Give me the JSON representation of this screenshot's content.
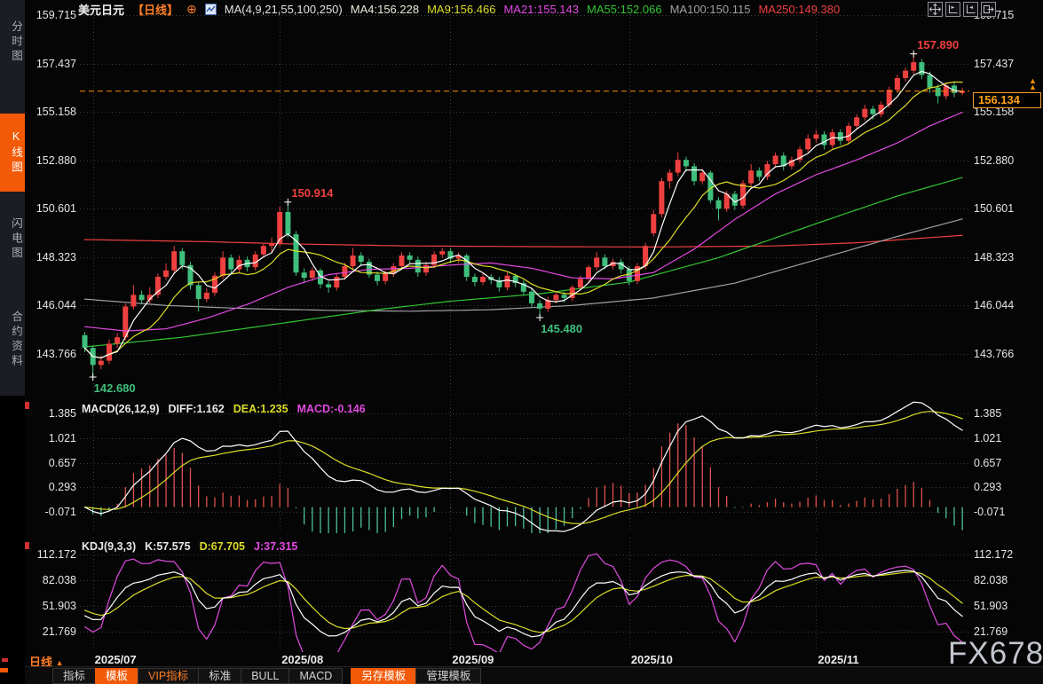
{
  "sidebar": {
    "items": [
      {
        "label": "分时图",
        "active": false
      },
      {
        "label": "K线图",
        "active": true
      },
      {
        "label": "闪电图",
        "active": false
      },
      {
        "label": "合约资料",
        "active": false
      }
    ]
  },
  "header": {
    "symbol": "美元日元",
    "period_tag": "【日线】",
    "add_indicator": "⊕",
    "ma_settings": "MA(4,9,21,55,100,250)",
    "ma_legend": [
      {
        "text": "MA4:156.228",
        "color": "#e8e8d8"
      },
      {
        "text": "MA9:156.466",
        "color": "#dcdc28"
      },
      {
        "text": "MA21:155.143",
        "color": "#e14ae1"
      },
      {
        "text": "MA55:152.066",
        "color": "#32c432"
      },
      {
        "text": "MA100:150.115",
        "color": "#a0a0a8"
      },
      {
        "text": "MA250:149.380",
        "color": "#ef4040"
      }
    ],
    "window_icons": [
      "pan-icon",
      "axis-scale-left-icon",
      "axis-scale-right-icon",
      "popout-icon"
    ]
  },
  "price_scale": {
    "main_ticks": [
      "159.715",
      "157.437",
      "155.158",
      "152.880",
      "150.601",
      "148.323",
      "146.044",
      "143.766"
    ],
    "macd_ticks": [
      "1.385",
      "1.021",
      "0.657",
      "0.293",
      "-0.071"
    ],
    "kdj_ticks": [
      "112.172",
      "82.038",
      "51.903",
      "21.769"
    ]
  },
  "price_line": {
    "badge": "156.134",
    "price": 156.134
  },
  "macd": {
    "title": "MACD(26,12,9)",
    "legend": [
      {
        "text": "DIFF:1.162",
        "color": "#e8e8e8"
      },
      {
        "text": "DEA:1.235",
        "color": "#dcdc28"
      },
      {
        "text": "MACD:-0.146",
        "color": "#e14ae1"
      }
    ]
  },
  "kdj": {
    "title": "KDJ(9,3,3)",
    "legend": [
      {
        "text": "K:57.575",
        "color": "#e8e8e8"
      },
      {
        "text": "D:67.705",
        "color": "#dcdc28"
      },
      {
        "text": "J:37.315",
        "color": "#e14ae1"
      }
    ]
  },
  "xaxis": {
    "period_label": "日线",
    "period_arrow": "▲",
    "months": [
      {
        "label": "2025/07",
        "index": 1
      },
      {
        "label": "2025/08",
        "index": 24
      },
      {
        "label": "2025/09",
        "index": 45
      },
      {
        "label": "2025/10",
        "index": 67
      },
      {
        "label": "2025/11",
        "index": 90
      }
    ]
  },
  "toolbar": {
    "tabs": [
      {
        "label": "指标",
        "style": "plain"
      },
      {
        "label": "模板",
        "style": "active"
      },
      {
        "label": "VIP指标",
        "style": "vip"
      },
      {
        "label": "标准",
        "style": "plain"
      },
      {
        "label": "BULL",
        "style": "plain"
      },
      {
        "label": "MACD",
        "style": "plain"
      },
      {
        "label": "另存模板",
        "style": "active gap"
      },
      {
        "label": "管理模板",
        "style": "plain"
      }
    ]
  },
  "watermark": "FX678",
  "colors": {
    "up": "#ef4040",
    "down": "#3fbf7c",
    "accent": "#f25a08",
    "price_line": "#ff9100",
    "badge_text": "#ffa21a",
    "macd_pos": "#e05050",
    "macd_neg": "#4cbf9f",
    "ma4": "#ffffff",
    "ma9": "#dcdc28",
    "ma21": "#e14ae1",
    "ma55": "#32c432",
    "ma100": "#a0a0a8",
    "ma250": "#ef4040",
    "k": "#ffffff",
    "d": "#dcdc28",
    "j": "#e14ae1",
    "grid": "#3c3c3c",
    "annotation_high": "#ef4040",
    "annotation_low": "#3fbf7c"
  },
  "chart_data": {
    "type": "candlestick",
    "symbol": "USD/JPY",
    "period": "daily",
    "main_ylim": [
      143.766,
      159.715
    ],
    "macd_ylim": [
      -0.071,
      1.385
    ],
    "kdj_ylim": [
      21.769,
      112.172
    ],
    "month_start_indices": [
      1,
      24,
      45,
      67,
      90
    ],
    "annotations": [
      {
        "index": 1,
        "price": 142.68,
        "text": "142.680",
        "kind": "low"
      },
      {
        "index": 25,
        "price": 150.914,
        "text": "150.914",
        "kind": "high"
      },
      {
        "index": 56,
        "price": 145.48,
        "text": "145.480",
        "kind": "low"
      },
      {
        "index": 102,
        "price": 157.89,
        "text": "157.890",
        "kind": "high"
      }
    ],
    "candles": [
      [
        144.65,
        144.8,
        143.85,
        144.05
      ],
      [
        144.05,
        144.15,
        142.68,
        143.25
      ],
      [
        143.25,
        143.7,
        143.05,
        143.45
      ],
      [
        143.45,
        144.45,
        143.3,
        144.25
      ],
      [
        144.25,
        144.75,
        144.05,
        144.55
      ],
      [
        144.55,
        146.15,
        144.4,
        146.0
      ],
      [
        146.0,
        147.0,
        145.85,
        146.55
      ],
      [
        146.55,
        146.75,
        146.1,
        146.3
      ],
      [
        146.3,
        146.9,
        146.15,
        146.55
      ],
      [
        146.55,
        147.55,
        146.4,
        147.4
      ],
      [
        147.4,
        148.03,
        147.25,
        147.7
      ],
      [
        147.7,
        148.85,
        147.55,
        148.6
      ],
      [
        148.6,
        148.75,
        147.75,
        147.95
      ],
      [
        147.95,
        148.1,
        146.8,
        147.0
      ],
      [
        147.0,
        147.15,
        145.76,
        146.35
      ],
      [
        146.35,
        146.85,
        146.2,
        146.65
      ],
      [
        146.65,
        147.6,
        146.5,
        147.45
      ],
      [
        147.45,
        148.6,
        147.3,
        148.3
      ],
      [
        148.3,
        148.45,
        147.55,
        147.75
      ],
      [
        147.75,
        148.4,
        147.6,
        148.2
      ],
      [
        148.2,
        148.35,
        147.65,
        147.85
      ],
      [
        147.85,
        148.6,
        147.7,
        148.45
      ],
      [
        148.45,
        148.95,
        148.3,
        148.85
      ],
      [
        148.85,
        149.25,
        148.55,
        148.95
      ],
      [
        148.95,
        150.7,
        148.8,
        150.45
      ],
      [
        150.45,
        150.914,
        149.25,
        149.4
      ],
      [
        149.4,
        149.55,
        147.45,
        147.6
      ],
      [
        147.6,
        147.8,
        147.1,
        147.35
      ],
      [
        147.35,
        147.85,
        147.2,
        147.7
      ],
      [
        147.7,
        147.8,
        146.85,
        147.05
      ],
      [
        147.05,
        147.2,
        146.65,
        146.9
      ],
      [
        146.9,
        147.55,
        146.75,
        147.4
      ],
      [
        147.4,
        148.05,
        147.25,
        147.9
      ],
      [
        147.9,
        148.75,
        147.75,
        148.4
      ],
      [
        148.4,
        148.55,
        147.9,
        148.1
      ],
      [
        148.1,
        148.25,
        147.35,
        147.5
      ],
      [
        147.5,
        147.65,
        147.0,
        147.2
      ],
      [
        147.2,
        147.7,
        147.05,
        147.55
      ],
      [
        147.55,
        148.05,
        147.4,
        147.9
      ],
      [
        147.9,
        148.55,
        147.75,
        148.4
      ],
      [
        148.4,
        148.55,
        148.0,
        148.2
      ],
      [
        148.2,
        148.35,
        147.4,
        147.6
      ],
      [
        147.6,
        148.1,
        147.45,
        147.95
      ],
      [
        147.95,
        148.6,
        147.8,
        148.45
      ],
      [
        148.45,
        148.75,
        148.3,
        148.6
      ],
      [
        148.6,
        148.75,
        148.05,
        148.25
      ],
      [
        148.25,
        148.55,
        148.05,
        148.4
      ],
      [
        148.4,
        148.5,
        147.2,
        147.4
      ],
      [
        147.4,
        147.55,
        146.95,
        147.15
      ],
      [
        147.15,
        147.55,
        147.0,
        147.4
      ],
      [
        147.4,
        147.52,
        147.05,
        147.25
      ],
      [
        147.25,
        147.4,
        146.7,
        146.9
      ],
      [
        146.9,
        147.6,
        146.75,
        147.45
      ],
      [
        147.45,
        147.55,
        146.9,
        147.1
      ],
      [
        147.1,
        147.25,
        146.5,
        146.7
      ],
      [
        146.7,
        146.85,
        145.95,
        146.15
      ],
      [
        146.15,
        146.3,
        145.48,
        145.9
      ],
      [
        145.9,
        146.45,
        145.75,
        146.3
      ],
      [
        146.3,
        146.7,
        146.15,
        146.55
      ],
      [
        146.55,
        146.7,
        146.2,
        146.4
      ],
      [
        146.4,
        147.0,
        146.25,
        146.9
      ],
      [
        146.9,
        147.45,
        146.75,
        147.3
      ],
      [
        147.3,
        147.95,
        147.15,
        147.85
      ],
      [
        147.85,
        148.55,
        147.7,
        148.3
      ],
      [
        148.3,
        148.45,
        147.75,
        147.9
      ],
      [
        147.9,
        148.25,
        147.75,
        148.1
      ],
      [
        148.1,
        148.25,
        147.55,
        147.75
      ],
      [
        147.75,
        147.9,
        147.0,
        147.2
      ],
      [
        147.2,
        148.05,
        147.05,
        147.9
      ],
      [
        147.9,
        149.0,
        147.75,
        148.85
      ],
      [
        149.45,
        150.55,
        149.3,
        150.35
      ],
      [
        150.35,
        152.05,
        150.2,
        151.9
      ],
      [
        151.9,
        152.45,
        151.55,
        152.3
      ],
      [
        152.3,
        153.25,
        152.15,
        152.9
      ],
      [
        152.9,
        153.05,
        152.35,
        152.6
      ],
      [
        152.6,
        152.75,
        151.7,
        151.9
      ],
      [
        151.9,
        152.45,
        151.75,
        152.3
      ],
      [
        152.3,
        152.4,
        150.85,
        151.0
      ],
      [
        151.0,
        151.15,
        150.05,
        150.6
      ],
      [
        150.6,
        151.45,
        150.45,
        151.3
      ],
      [
        151.3,
        151.45,
        150.55,
        150.75
      ],
      [
        150.75,
        151.95,
        150.6,
        151.8
      ],
      [
        151.8,
        152.7,
        151.65,
        152.4
      ],
      [
        152.4,
        152.55,
        151.9,
        152.1
      ],
      [
        152.1,
        152.85,
        151.95,
        152.7
      ],
      [
        152.7,
        153.25,
        152.55,
        153.1
      ],
      [
        153.1,
        153.25,
        152.4,
        152.6
      ],
      [
        152.6,
        153.05,
        152.45,
        152.9
      ],
      [
        152.9,
        153.55,
        152.75,
        153.4
      ],
      [
        153.4,
        154.1,
        153.25,
        153.9
      ],
      [
        153.9,
        154.3,
        153.7,
        154.1
      ],
      [
        154.1,
        154.25,
        153.4,
        153.6
      ],
      [
        153.6,
        154.35,
        153.45,
        154.2
      ],
      [
        154.2,
        154.35,
        153.6,
        153.8
      ],
      [
        153.8,
        154.65,
        153.65,
        154.5
      ],
      [
        154.5,
        155.05,
        154.35,
        154.9
      ],
      [
        154.9,
        155.5,
        154.75,
        155.3
      ],
      [
        155.3,
        155.45,
        154.8,
        155.05
      ],
      [
        155.05,
        155.65,
        154.9,
        155.5
      ],
      [
        155.5,
        156.35,
        155.35,
        156.2
      ],
      [
        156.2,
        156.9,
        156.05,
        156.75
      ],
      [
        156.75,
        157.25,
        156.6,
        157.1
      ],
      [
        157.1,
        157.89,
        156.95,
        157.5
      ],
      [
        157.5,
        157.65,
        156.7,
        156.9
      ],
      [
        156.9,
        157.05,
        156.05,
        156.3
      ],
      [
        156.3,
        156.45,
        155.56,
        155.9
      ],
      [
        155.9,
        156.55,
        155.75,
        156.4
      ],
      [
        156.4,
        156.55,
        155.85,
        156.05
      ],
      [
        156.05,
        156.3,
        155.95,
        156.134
      ]
    ],
    "overlays": {
      "ma21_points": [
        [
          0,
          145.05
        ],
        [
          5,
          144.85
        ],
        [
          10,
          144.95
        ],
        [
          15,
          145.45
        ],
        [
          20,
          146.1
        ],
        [
          25,
          146.9
        ],
        [
          30,
          147.5
        ],
        [
          35,
          147.75
        ],
        [
          40,
          147.8
        ],
        [
          45,
          147.95
        ],
        [
          50,
          148.05
        ],
        [
          55,
          147.8
        ],
        [
          60,
          147.35
        ],
        [
          65,
          147.3
        ],
        [
          70,
          147.6
        ],
        [
          75,
          148.7
        ],
        [
          80,
          150.1
        ],
        [
          85,
          151.3
        ],
        [
          90,
          152.2
        ],
        [
          95,
          152.9
        ],
        [
          100,
          153.7
        ],
        [
          104,
          154.5
        ],
        [
          108,
          155.14
        ]
      ],
      "ma55_points": [
        [
          0,
          144.1
        ],
        [
          12,
          144.55
        ],
        [
          24,
          145.2
        ],
        [
          36,
          145.85
        ],
        [
          45,
          146.25
        ],
        [
          56,
          146.6
        ],
        [
          67,
          147.15
        ],
        [
          78,
          148.3
        ],
        [
          90,
          149.9
        ],
        [
          100,
          151.2
        ],
        [
          108,
          152.07
        ]
      ],
      "ma100_points": [
        [
          0,
          146.35
        ],
        [
          10,
          146.05
        ],
        [
          20,
          145.9
        ],
        [
          30,
          145.82
        ],
        [
          40,
          145.78
        ],
        [
          50,
          145.85
        ],
        [
          60,
          146.05
        ],
        [
          70,
          146.4
        ],
        [
          80,
          147.1
        ],
        [
          90,
          148.2
        ],
        [
          100,
          149.3
        ],
        [
          108,
          150.12
        ]
      ],
      "ma250_points": [
        [
          0,
          149.15
        ],
        [
          15,
          149.05
        ],
        [
          25,
          148.95
        ],
        [
          40,
          148.85
        ],
        [
          55,
          148.82
        ],
        [
          70,
          148.8
        ],
        [
          85,
          148.85
        ],
        [
          95,
          149.0
        ],
        [
          108,
          149.35
        ]
      ]
    }
  }
}
